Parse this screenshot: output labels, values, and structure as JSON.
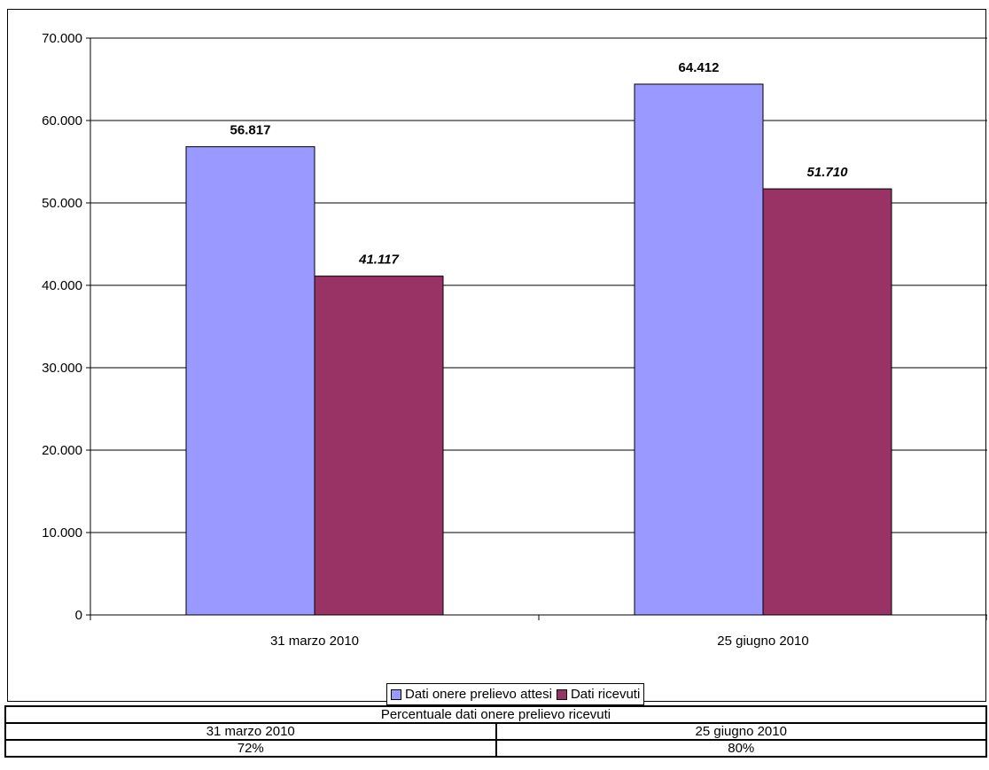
{
  "chart_data": {
    "type": "bar",
    "categories": [
      "31 marzo 2010",
      "25 giugno 2010"
    ],
    "series": [
      {
        "name": "Dati onere prelievo attesi",
        "values": [
          56817,
          64412
        ],
        "data_labels": [
          "56.817",
          "64.412"
        ],
        "label_style": "bold",
        "color": "#9999FF"
      },
      {
        "name": "Dati ricevuti",
        "values": [
          41117,
          51710
        ],
        "data_labels": [
          "41.117",
          "51.710"
        ],
        "label_style": "bold-italic",
        "color": "#993366"
      }
    ],
    "ylim": [
      0,
      70000
    ],
    "yticks": [
      0,
      10000,
      20000,
      30000,
      40000,
      50000,
      60000,
      70000
    ],
    "ytick_labels": [
      "0",
      "10.000",
      "20.000",
      "30.000",
      "40.000",
      "50.000",
      "60.000",
      "70.000"
    ],
    "grid": true,
    "legend_position": "bottom"
  },
  "table": {
    "title": "Percentuale dati onere prelievo ricevuti",
    "headers": [
      "31 marzo 2010",
      "25 giugno 2010"
    ],
    "values": [
      "72%",
      "80%"
    ]
  }
}
